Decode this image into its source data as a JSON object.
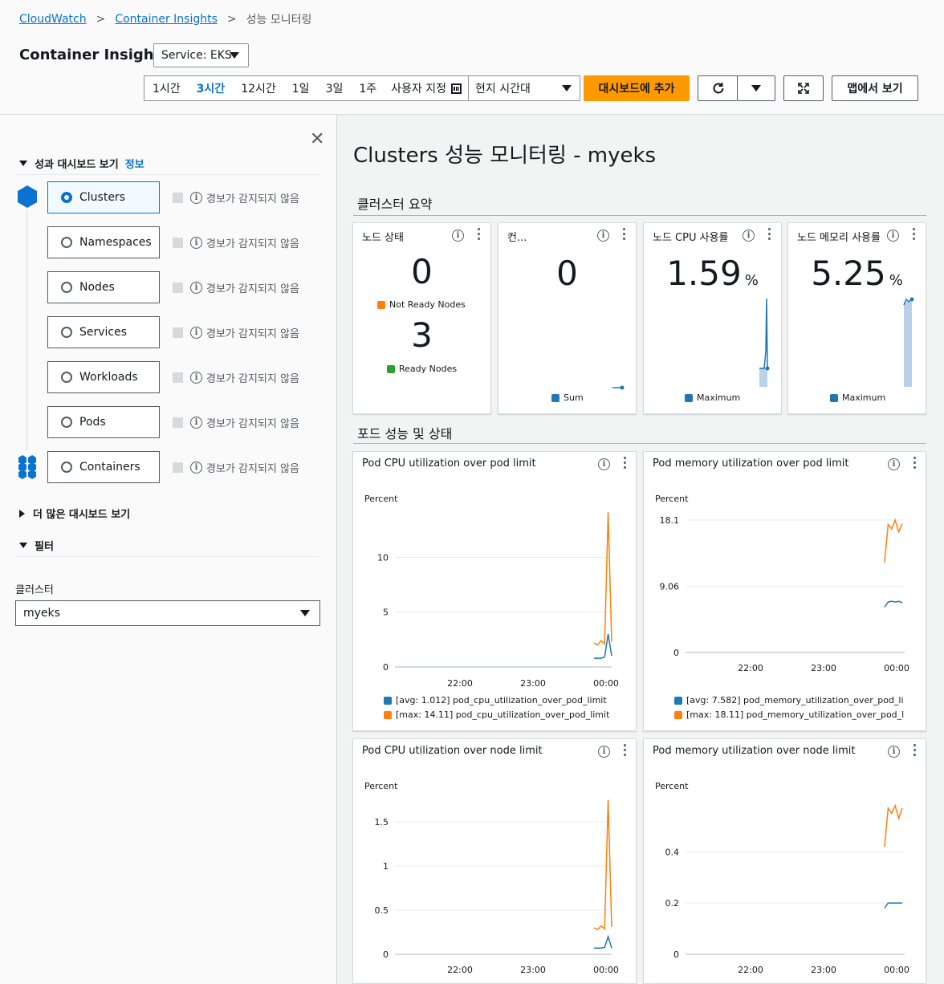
{
  "breadcrumb": {
    "item1": "CloudWatch",
    "item2": "Container Insights",
    "current": "성능 모니터링"
  },
  "header": {
    "title": "Container Insights",
    "service": "Service: EKS"
  },
  "time_range": {
    "options": [
      "1시간",
      "3시간",
      "12시간",
      "1일",
      "3일",
      "1주"
    ],
    "selected": "3시간",
    "custom": "사용자 지정",
    "timezone": "현지 시간대"
  },
  "actions": {
    "add_dashboard": "대시보드에 추가",
    "map_view": "맵에서 보기"
  },
  "left": {
    "section_title": "성과 대시보드 보기",
    "info": "정보",
    "dashboards": [
      {
        "label": "Clusters",
        "alarm": "경보가 감지되지 않음",
        "selected": true
      },
      {
        "label": "Namespaces",
        "alarm": "경보가 감지되지 않음",
        "selected": false
      },
      {
        "label": "Nodes",
        "alarm": "경보가 감지되지 않음",
        "selected": false
      },
      {
        "label": "Services",
        "alarm": "경보가 감지되지 않음",
        "selected": false
      },
      {
        "label": "Workloads",
        "alarm": "경보가 감지되지 않음",
        "selected": false
      },
      {
        "label": "Pods",
        "alarm": "경보가 감지되지 않음",
        "selected": false
      },
      {
        "label": "Containers",
        "alarm": "경보가 감지되지 않음",
        "selected": false
      }
    ],
    "more": "더 많은 대시보드 보기",
    "filter": "필터",
    "cluster_label": "클러스터",
    "cluster_value": "myeks"
  },
  "main": {
    "title": "Clusters 성능 모니터링 - myeks",
    "summary_title": "클러스터 요약",
    "pod_title": "포드 성능 및 상태"
  },
  "summary": {
    "node_status": {
      "title": "노드 상태",
      "not_ready": "0",
      "not_ready_label": "Not Ready Nodes",
      "ready": "3",
      "ready_label": "Ready Nodes"
    },
    "containers": {
      "title": "컨...",
      "value": "0",
      "legend": "Sum"
    },
    "node_cpu": {
      "title": "노드 CPU 사용률",
      "value": "1.59",
      "unit": "%",
      "legend": "Maximum"
    },
    "node_mem": {
      "title": "노드 메모리 사용률",
      "value": "5.25",
      "unit": "%",
      "legend": "Maximum"
    }
  },
  "colors": {
    "blue": "#1f77b4",
    "orange": "#ff7f0e",
    "green": "#2ca02c",
    "accent": "#0972d3",
    "primary_button": "#ff9900"
  },
  "chart_data": [
    {
      "type": "line",
      "title": "Pod CPU utilization over pod limit",
      "ylabel": "Percent",
      "yticks": [
        0,
        5,
        10
      ],
      "ylim": [
        0,
        14.5
      ],
      "x_ticks": [
        "22:00",
        "23:00",
        "00:00"
      ],
      "series": [
        {
          "name": "[avg: 1.012] pod_cpu_utilization_over_pod_limit",
          "color": "#1f77b4",
          "values": [
            0.8,
            0.8,
            0.8,
            0.9,
            3.0,
            1.0
          ]
        },
        {
          "name": "[max: 14.11] pod_cpu_utilization_over_pod_limit",
          "color": "#ff7f0e",
          "values": [
            2.2,
            2.0,
            2.4,
            2.1,
            14.11,
            2.3
          ]
        }
      ]
    },
    {
      "type": "line",
      "title": "Pod memory utilization over pod limit",
      "ylabel": "Percent",
      "yticks": [
        0,
        9.06,
        18.1
      ],
      "ylim": [
        0,
        18.1
      ],
      "x_ticks": [
        "22:00",
        "23:00",
        "00:00"
      ],
      "series": [
        {
          "name": "[avg: 7.582] pod_memory_utilization_over_pod_li",
          "color": "#1f77b4",
          "values": [
            6.2,
            6.9,
            7.0,
            6.9,
            7.0,
            6.8
          ]
        },
        {
          "name": "[max: 18.11] pod_memory_utilization_over_pod_l",
          "color": "#ff7f0e",
          "values": [
            12.3,
            17.5,
            16.9,
            18.11,
            16.5,
            17.6
          ]
        }
      ]
    },
    {
      "type": "line",
      "title": "Pod CPU utilization over node limit",
      "ylabel": "Percent",
      "yticks": [
        0,
        0.5,
        1,
        1.5
      ],
      "ylim": [
        0,
        1.8
      ],
      "x_ticks": [
        "22:00",
        "23:00",
        "00:00"
      ],
      "series": [
        {
          "name": "",
          "color": "#1f77b4",
          "values": [
            0.07,
            0.07,
            0.07,
            0.08,
            0.2,
            0.07
          ]
        },
        {
          "name": "",
          "color": "#ff7f0e",
          "values": [
            0.3,
            0.28,
            0.32,
            0.29,
            1.75,
            0.31
          ]
        }
      ]
    },
    {
      "type": "line",
      "title": "Pod memory utilization over node limit",
      "ylabel": "Percent",
      "yticks": [
        0,
        0.2,
        0.4
      ],
      "ylim": [
        0,
        0.62
      ],
      "x_ticks": [
        "22:00",
        "23:00",
        "00:00"
      ],
      "series": [
        {
          "name": "",
          "color": "#1f77b4",
          "values": [
            0.18,
            0.2,
            0.2,
            0.2,
            0.2,
            0.2
          ]
        },
        {
          "name": "",
          "color": "#ff7f0e",
          "values": [
            0.42,
            0.57,
            0.55,
            0.58,
            0.53,
            0.57
          ]
        }
      ]
    }
  ]
}
